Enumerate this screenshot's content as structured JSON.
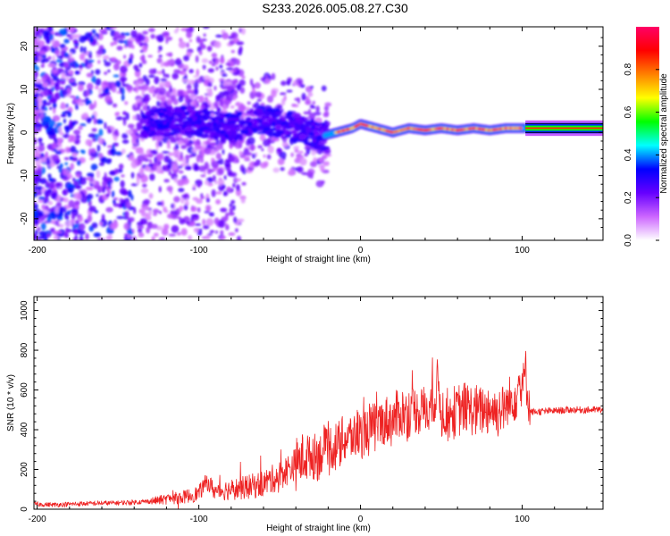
{
  "title": "S233.2026.005.08.27.C30",
  "chart_data": [
    {
      "type": "heatmap",
      "xlabel": "Height of straight line (km)",
      "ylabel": "Frequency (Hz)",
      "xlim": [
        -202,
        150
      ],
      "ylim": [
        -25,
        24.5
      ],
      "xticks": [
        -200,
        -100,
        0,
        100
      ],
      "yticks": [
        20,
        10,
        0,
        -10,
        -20
      ],
      "colorbar": {
        "label": "Normalized spectral amplitude",
        "range": [
          0,
          1
        ],
        "ticks": [
          0.0,
          0.2,
          0.4,
          0.6,
          0.8
        ],
        "stops": [
          "#ffffff",
          "#cc66ff",
          "#6600ff",
          "#0000ff",
          "#00ffff",
          "#00ff00",
          "#ffff00",
          "#ff8000",
          "#ff0000",
          "#ff0066"
        ]
      },
      "features": [
        {
          "name": "",
          "x": [
            -130,
            -110,
            -95,
            -80,
            -70,
            -60,
            -50,
            -40,
            -30,
            -25,
            -15,
            -5,
            0,
            10,
            20,
            30,
            40,
            50,
            60,
            70,
            80,
            90,
            100,
            102,
            150
          ],
          "y": [
            2,
            3,
            2,
            1,
            2,
            3,
            2,
            1,
            0,
            -1,
            0,
            1,
            2,
            1,
            0,
            1,
            0.5,
            1,
            0.5,
            1,
            0.5,
            1,
            1,
            1,
            1
          ]
        }
      ]
    },
    {
      "type": "line",
      "xlabel": "Height of straight line (km)",
      "ylabel": "SNR (10 * v/v)",
      "xlim": [
        -202,
        150
      ],
      "ylim": [
        0,
        1070
      ],
      "xticks": [
        -200,
        -100,
        0,
        100
      ],
      "yticks": [
        0,
        200,
        400,
        600,
        800,
        1000
      ],
      "color": "#ee2222",
      "series": [
        {
          "name": "",
          "x": [
            -202,
            -190,
            -180,
            -170,
            -160,
            -150,
            -140,
            -130,
            -120,
            -110,
            -100,
            -95,
            -90,
            -80,
            -70,
            -60,
            -50,
            -45,
            -40,
            -35,
            -30,
            -25,
            -20,
            -15,
            -10,
            -5,
            0,
            5,
            10,
            15,
            20,
            25,
            30,
            35,
            40,
            45,
            48,
            50,
            55,
            60,
            65,
            70,
            75,
            80,
            85,
            90,
            95,
            98,
            100,
            102,
            105,
            110,
            120,
            130,
            140,
            150
          ],
          "y": [
            25,
            22,
            25,
            28,
            30,
            32,
            35,
            40,
            50,
            60,
            80,
            140,
            90,
            100,
            110,
            130,
            170,
            200,
            230,
            260,
            270,
            280,
            300,
            320,
            350,
            370,
            380,
            400,
            420,
            440,
            450,
            480,
            490,
            500,
            500,
            520,
            640,
            490,
            470,
            500,
            510,
            490,
            500,
            510,
            490,
            520,
            560,
            620,
            590,
            700,
            490,
            490,
            495,
            500,
            500,
            500
          ]
        }
      ]
    }
  ]
}
